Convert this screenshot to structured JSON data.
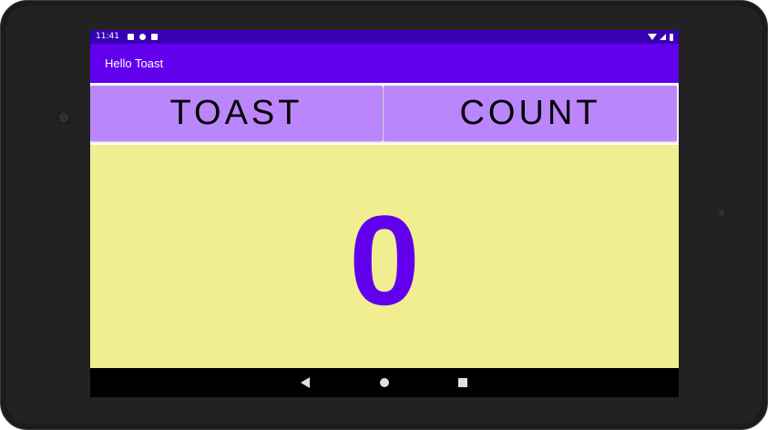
{
  "status_bar": {
    "time": "11:41"
  },
  "app_bar": {
    "title": "Hello Toast"
  },
  "buttons": {
    "toast_label": "TOAST",
    "count_label": "COUNT"
  },
  "counter": {
    "value": "0"
  },
  "colors": {
    "status_bar": "#3700b3",
    "app_bar": "#6200ee",
    "button_bg": "#bb86fc",
    "count_text": "#6200ee",
    "background": "#f0ee91"
  },
  "icons": {
    "status_left": [
      "notification-icon",
      "sync-icon",
      "sd-card-icon"
    ],
    "status_right": [
      "wifi-icon",
      "signal-icon",
      "battery-icon"
    ],
    "nav": [
      "back-icon",
      "home-icon",
      "recents-icon"
    ]
  }
}
